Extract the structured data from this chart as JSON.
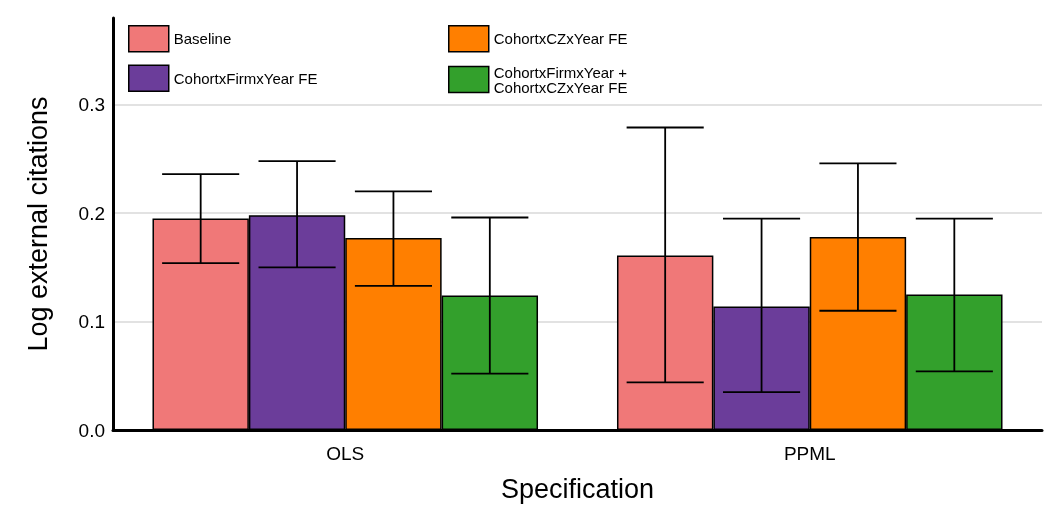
{
  "chart_data": {
    "type": "bar",
    "xlabel": "Specification",
    "ylabel": "Log external citations",
    "categories": [
      "OLS",
      "PPML"
    ],
    "series": [
      {
        "name": "Baseline",
        "color": "#f07878",
        "values": [
          0.195,
          0.161
        ],
        "errors": [
          [
            0.154,
            0.236
          ],
          [
            0.044,
            0.279
          ]
        ]
      },
      {
        "name": "CohortxFirmxYear FE",
        "color": "#6b3d9a",
        "values": [
          0.198,
          0.114
        ],
        "errors": [
          [
            0.15,
            0.248
          ],
          [
            0.035,
            0.195
          ]
        ]
      },
      {
        "name": "CohortxCZxYear FE",
        "color": "#ff7f00",
        "values": [
          0.177,
          0.178
        ],
        "errors": [
          [
            0.133,
            0.22
          ],
          [
            0.11,
            0.246
          ]
        ]
      },
      {
        "name": "CohortxFirmxYear + CohortxCZxYear FE",
        "color": "#33a02c",
        "values": [
          0.124,
          0.125
        ],
        "errors": [
          [
            0.052,
            0.196
          ],
          [
            0.054,
            0.195
          ]
        ]
      }
    ],
    "ylim": [
      0,
      0.38
    ],
    "yticks": [
      {
        "value": 0,
        "label": "0.0"
      },
      {
        "value": 0.1,
        "label": "0.1"
      },
      {
        "value": 0.2,
        "label": "0.2"
      },
      {
        "value": 0.3,
        "label": "0.3"
      }
    ],
    "grid": "y",
    "legend": "top left"
  }
}
